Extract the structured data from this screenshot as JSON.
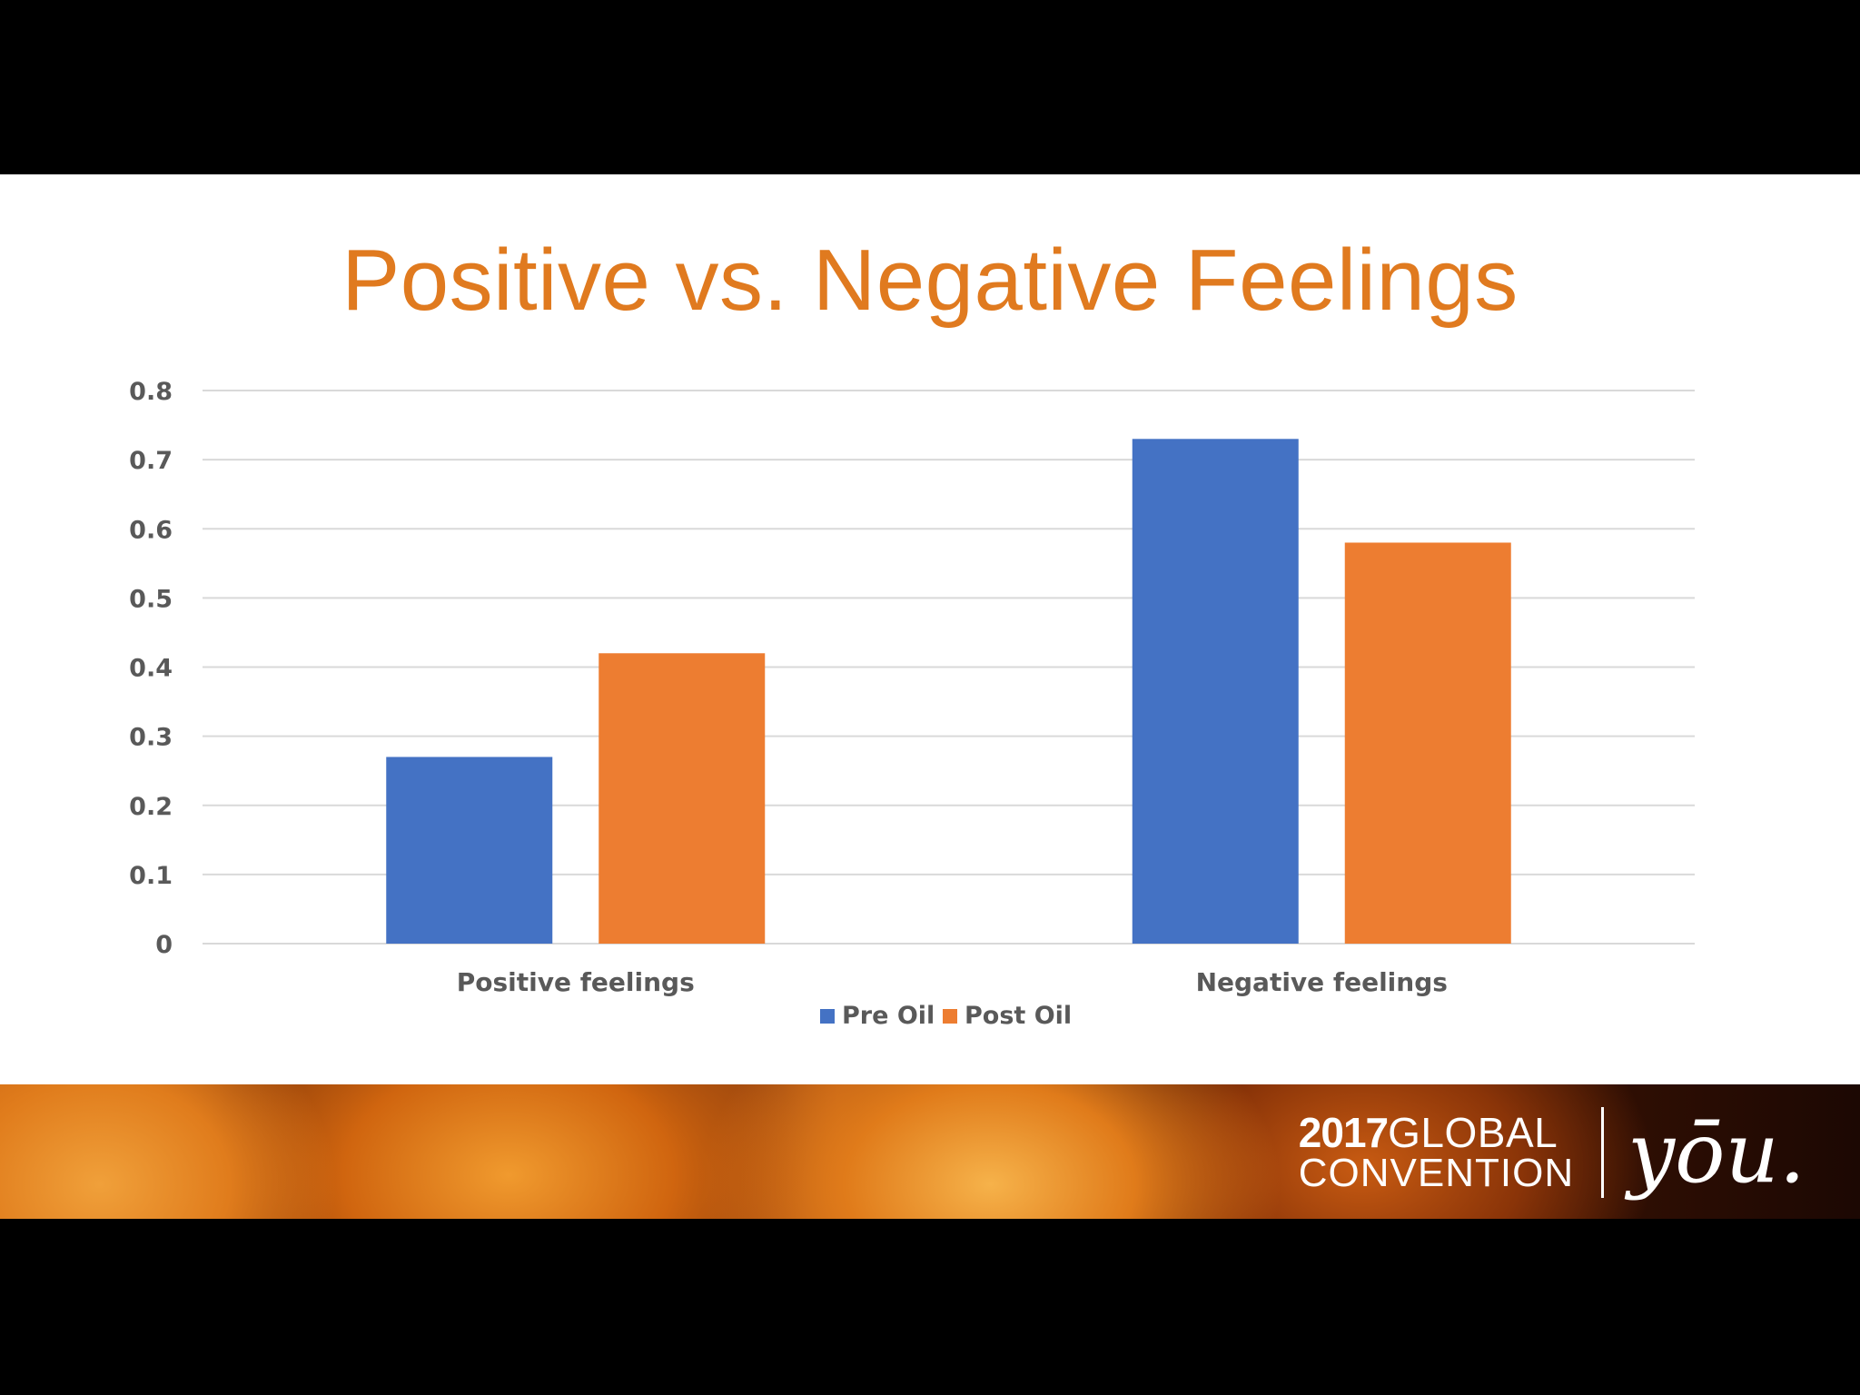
{
  "slide": {
    "title": "Positive vs. Negative Feelings"
  },
  "chart_data": {
    "type": "bar",
    "title": "",
    "categories": [
      "Positive feelings",
      "Negative feelings"
    ],
    "series": [
      {
        "name": "Pre Oil",
        "color": "#4472C4",
        "values": [
          0.27,
          0.73
        ]
      },
      {
        "name": "Post Oil",
        "color": "#ED7D31",
        "values": [
          0.42,
          0.58
        ]
      }
    ],
    "xlabel": "",
    "ylabel": "",
    "ylim": [
      0,
      0.8
    ],
    "yticks": [
      "0",
      "0.1",
      "0.2",
      "0.3",
      "0.4",
      "0.5",
      "0.6",
      "0.7",
      "0.8"
    ],
    "grid": true,
    "legend": "bottom"
  },
  "banner": {
    "year": "2017",
    "line1_rest": "GLOBAL",
    "line2": "CONVENTION",
    "logo_text": "yōu."
  },
  "colors": {
    "title": "#E07A1F",
    "pre_oil": "#4472C4",
    "post_oil": "#ED7D31",
    "gridline": "#D9D9D9",
    "axis_text": "#595959"
  }
}
